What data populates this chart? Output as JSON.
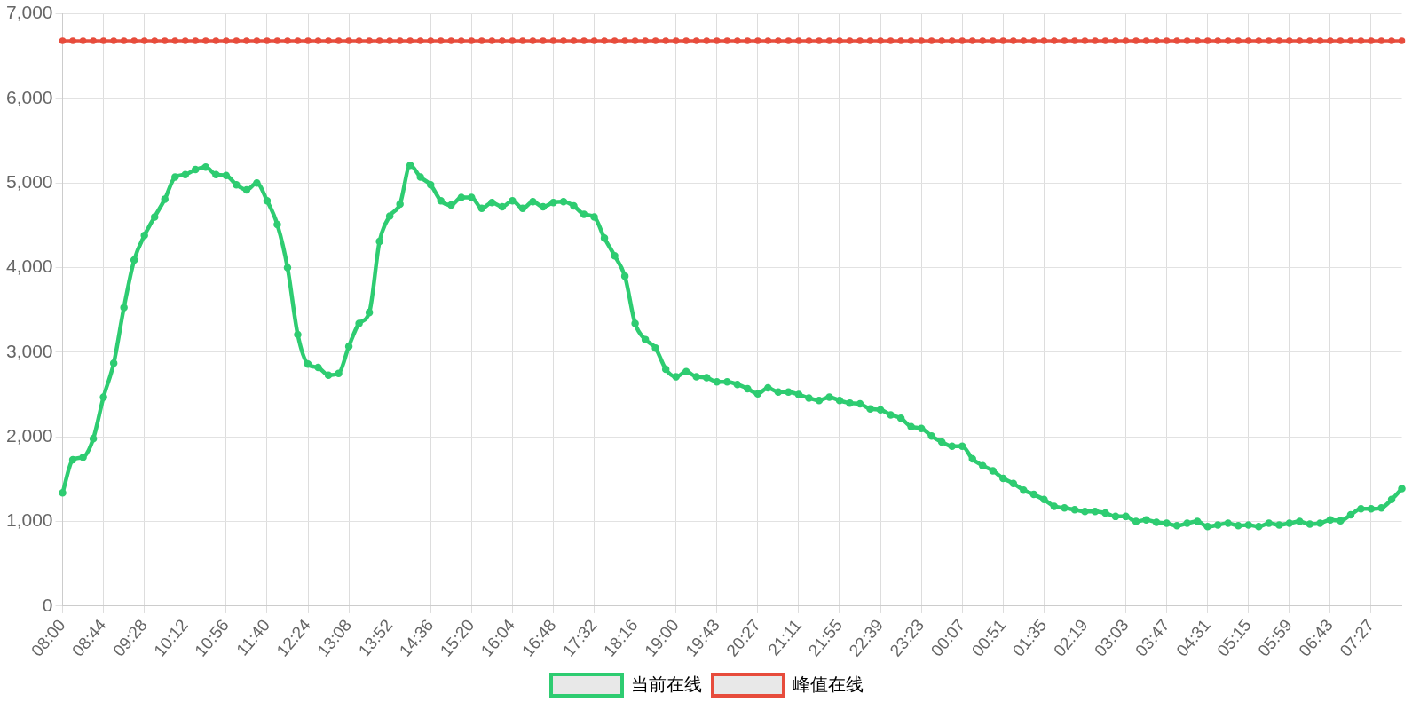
{
  "chart_data": {
    "type": "line",
    "categories": [
      "08:00",
      null,
      null,
      null,
      "08:44",
      null,
      null,
      null,
      "09:28",
      null,
      null,
      null,
      "10:12",
      null,
      null,
      null,
      "10:56",
      null,
      null,
      null,
      "11:40",
      null,
      null,
      null,
      "12:24",
      null,
      null,
      null,
      "13:08",
      null,
      null,
      null,
      "13:52",
      null,
      null,
      null,
      "14:36",
      null,
      null,
      null,
      "15:20",
      null,
      null,
      null,
      "16:04",
      null,
      null,
      null,
      "16:48",
      null,
      null,
      null,
      "17:32",
      null,
      null,
      null,
      "18:16",
      null,
      null,
      null,
      "19:00",
      null,
      null,
      null,
      "19:43",
      null,
      null,
      null,
      "20:27",
      null,
      null,
      null,
      "21:11",
      null,
      null,
      null,
      "21:55",
      null,
      null,
      null,
      "22:39",
      null,
      null,
      null,
      "23:23",
      null,
      null,
      null,
      "00:07",
      null,
      null,
      null,
      "00:51",
      null,
      null,
      null,
      "01:35",
      null,
      null,
      null,
      "02:19",
      null,
      null,
      null,
      "03:03",
      null,
      null,
      null,
      "03:47",
      null,
      null,
      null,
      "04:31",
      null,
      null,
      null,
      "05:15",
      null,
      null,
      null,
      "05:59",
      null,
      null,
      null,
      "06:43",
      null,
      null,
      null,
      "07:27",
      null,
      null,
      null
    ],
    "series": [
      {
        "name": "当前在线",
        "color": "#2ecc71",
        "values": [
          1340,
          1730,
          1760,
          1980,
          2470,
          2870,
          3530,
          4090,
          4380,
          4600,
          4810,
          5070,
          5100,
          5160,
          5190,
          5100,
          5090,
          4980,
          4920,
          5000,
          4790,
          4510,
          4000,
          3210,
          2860,
          2820,
          2730,
          2750,
          3070,
          3340,
          3470,
          4310,
          4610,
          4750,
          5210,
          5070,
          4980,
          4790,
          4740,
          4830,
          4830,
          4700,
          4770,
          4720,
          4790,
          4700,
          4780,
          4720,
          4770,
          4780,
          4730,
          4630,
          4600,
          4350,
          4140,
          3900,
          3340,
          3150,
          3050,
          2800,
          2710,
          2770,
          2710,
          2700,
          2650,
          2650,
          2620,
          2570,
          2510,
          2580,
          2530,
          2530,
          2500,
          2460,
          2430,
          2470,
          2430,
          2400,
          2390,
          2330,
          2320,
          2260,
          2220,
          2120,
          2100,
          2010,
          1940,
          1890,
          1890,
          1740,
          1660,
          1600,
          1510,
          1450,
          1370,
          1320,
          1260,
          1180,
          1160,
          1140,
          1120,
          1120,
          1100,
          1060,
          1060,
          1000,
          1020,
          990,
          980,
          950,
          980,
          1000,
          940,
          960,
          980,
          950,
          960,
          940,
          980,
          960,
          980,
          1000,
          970,
          980,
          1020,
          1010,
          1080,
          1150,
          1150,
          1160,
          1260,
          1390
        ]
      },
      {
        "name": "峰值在线",
        "color": "#e74c3c",
        "values": [
          6680,
          6680,
          6680,
          6680,
          6680,
          6680,
          6680,
          6680,
          6680,
          6680,
          6680,
          6680,
          6680,
          6680,
          6680,
          6680,
          6680,
          6680,
          6680,
          6680,
          6680,
          6680,
          6680,
          6680,
          6680,
          6680,
          6680,
          6680,
          6680,
          6680,
          6680,
          6680,
          6680,
          6680,
          6680,
          6680,
          6680,
          6680,
          6680,
          6680,
          6680,
          6680,
          6680,
          6680,
          6680,
          6680,
          6680,
          6680,
          6680,
          6680,
          6680,
          6680,
          6680,
          6680,
          6680,
          6680,
          6680,
          6680,
          6680,
          6680,
          6680,
          6680,
          6680,
          6680,
          6680,
          6680,
          6680,
          6680,
          6680,
          6680,
          6680,
          6680,
          6680,
          6680,
          6680,
          6680,
          6680,
          6680,
          6680,
          6680,
          6680,
          6680,
          6680,
          6680,
          6680,
          6680,
          6680,
          6680,
          6680,
          6680,
          6680,
          6680,
          6680,
          6680,
          6680,
          6680,
          6680,
          6680,
          6680,
          6680,
          6680,
          6680,
          6680,
          6680,
          6680,
          6680,
          6680,
          6680,
          6680,
          6680,
          6680,
          6680,
          6680,
          6680,
          6680,
          6680,
          6680,
          6680,
          6680,
          6680,
          6680,
          6680,
          6680,
          6680,
          6680,
          6680,
          6680,
          6680,
          6680,
          6680,
          6680,
          6680
        ]
      }
    ],
    "ylim": [
      0,
      7000
    ],
    "yticks": [
      0,
      {
        "value": 1000,
        "label": "1,000"
      },
      {
        "value": 2000,
        "label": "2,000"
      },
      {
        "value": 3000,
        "label": "3,000"
      },
      {
        "value": 4000,
        "label": "4,000"
      },
      {
        "value": 5000,
        "label": "5,000"
      },
      {
        "value": 6000,
        "label": "6,000"
      },
      {
        "value": 7000,
        "label": "7,000"
      }
    ],
    "grid": true,
    "legend": "bottom",
    "marker": "circle",
    "line_style": "solid"
  }
}
